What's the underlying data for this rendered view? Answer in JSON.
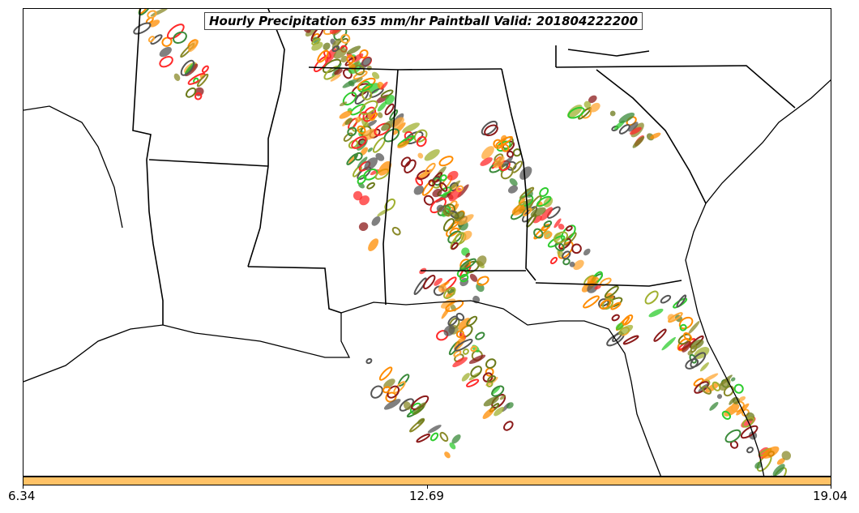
{
  "title": "Hourly Precipitation 635 mm/hr Paintball Valid: 201804222200",
  "colorbar": {
    "color": "#ffc266",
    "ticks": [
      "6.34",
      "12.69",
      "19.04"
    ]
  },
  "member_colors": [
    "#ff2a2a",
    "#ff8c00",
    "#ffa733",
    "#2ecc2e",
    "#3a8a3a",
    "#6b7a1a",
    "#8a8a2a",
    "#8b1a1a",
    "#555555",
    "#a0b030"
  ],
  "boundaries": {
    "states": [
      "Arkansas",
      "Louisiana",
      "Mississippi",
      "Alabama",
      "Georgia",
      "South Carolina",
      "Tennessee",
      "Florida"
    ],
    "color": "#000000"
  }
}
